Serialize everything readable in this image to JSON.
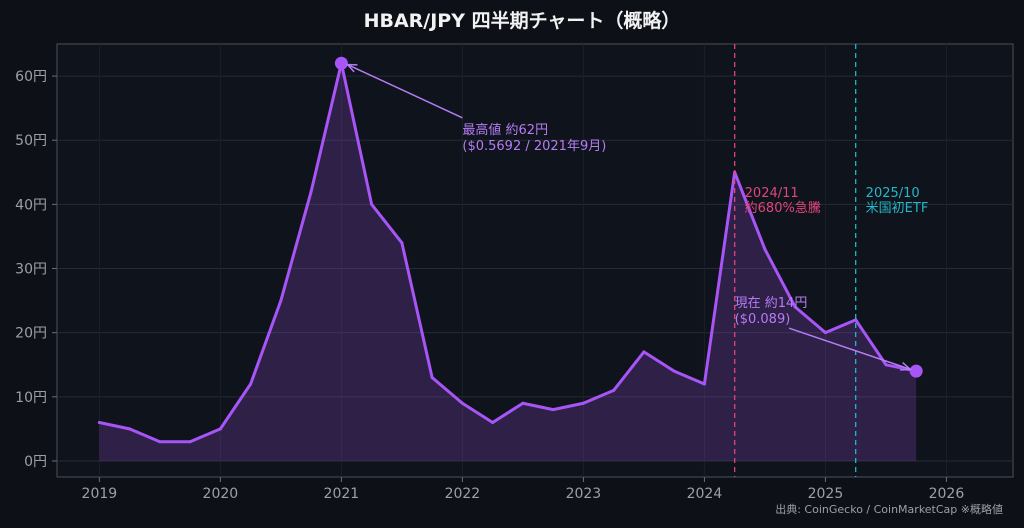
{
  "chart_data": {
    "type": "area",
    "title": "HBAR/JPY  四半期チャート（概略）",
    "xlabel": "",
    "ylabel": "",
    "xlim": [
      2018.65,
      2026.55
    ],
    "ylim": [
      -2.5,
      65
    ],
    "x_ticks": [
      2019,
      2020,
      2021,
      2022,
      2023,
      2024,
      2025,
      2026
    ],
    "y_ticks": [
      0,
      10,
      20,
      30,
      40,
      50,
      60
    ],
    "y_tick_labels": [
      "0円",
      "10円",
      "20円",
      "30円",
      "40円",
      "50円",
      "60円"
    ],
    "grid": true,
    "series": [
      {
        "color": "#a855f7",
        "points": [
          [
            2019.0,
            6
          ],
          [
            2019.25,
            5
          ],
          [
            2019.5,
            3
          ],
          [
            2019.75,
            3
          ],
          [
            2020.0,
            5
          ],
          [
            2020.25,
            12
          ],
          [
            2020.5,
            25
          ],
          [
            2020.75,
            42
          ],
          [
            2021.0,
            62
          ],
          [
            2021.25,
            40
          ],
          [
            2021.5,
            34
          ],
          [
            2021.75,
            13
          ],
          [
            2022.0,
            9
          ],
          [
            2022.25,
            6
          ],
          [
            2022.5,
            9
          ],
          [
            2022.75,
            8
          ],
          [
            2023.0,
            9
          ],
          [
            2023.25,
            11
          ],
          [
            2023.5,
            17
          ],
          [
            2023.75,
            14
          ],
          [
            2024.0,
            12
          ],
          [
            2024.25,
            45
          ],
          [
            2024.5,
            33
          ],
          [
            2024.75,
            24
          ],
          [
            2025.0,
            20
          ],
          [
            2025.25,
            22
          ],
          [
            2025.5,
            15
          ],
          [
            2025.75,
            14
          ]
        ]
      }
    ],
    "markers": [
      {
        "x": 2021.0,
        "y": 62,
        "color": "#a855f7"
      },
      {
        "x": 2025.75,
        "y": 14,
        "color": "#a855f7"
      }
    ],
    "vlines": [
      {
        "x": 2024.25,
        "color": "#e0457b",
        "label_lines": [
          "2024/11",
          "約680%急騰"
        ]
      },
      {
        "x": 2025.25,
        "color": "#22b8c8",
        "label_lines": [
          "2025/10",
          "米国初ETF"
        ]
      }
    ],
    "annotations": [
      {
        "lines": [
          "最高値 約62円",
          "($0.5692 / 2021年9月)"
        ],
        "color": "#b57cf5",
        "text_at": [
          2022.0,
          51
        ],
        "arrow_from": [
          2022.0,
          53.5
        ],
        "arrow_to": [
          2021.05,
          61.8
        ]
      },
      {
        "lines": [
          "現在 約14円",
          "($0.089)"
        ],
        "color": "#b57cf5",
        "text_at": [
          2024.25,
          24
        ],
        "arrow_from": [
          2024.7,
          20.7
        ],
        "arrow_to": [
          2025.7,
          14.3
        ]
      }
    ],
    "source_note": "出典: CoinGecko / CoinMarketCap  ※概略値"
  }
}
